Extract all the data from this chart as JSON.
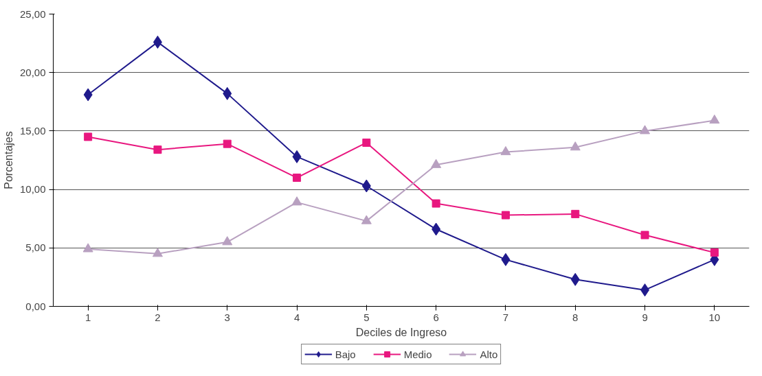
{
  "chart_data": {
    "type": "line",
    "xlabel": "Deciles de Ingreso",
    "ylabel": "Porcentajes",
    "categories": [
      "1",
      "2",
      "3",
      "4",
      "5",
      "6",
      "7",
      "8",
      "9",
      "10"
    ],
    "ylim": [
      0,
      25
    ],
    "yticks": [
      {
        "value": 0,
        "label": "0,00"
      },
      {
        "value": 5,
        "label": "5,00"
      },
      {
        "value": 10,
        "label": "10,00"
      },
      {
        "value": 15,
        "label": "15,00"
      },
      {
        "value": 20,
        "label": "20,00"
      },
      {
        "value": 25,
        "label": "25,00"
      }
    ],
    "grid": "y",
    "legend": "bottom",
    "series": [
      {
        "name": "Bajo",
        "color": "#1f1a8c",
        "marker": "diamond",
        "values": [
          18.1,
          22.6,
          18.2,
          12.8,
          10.3,
          6.6,
          4.0,
          2.3,
          1.4,
          4.0
        ]
      },
      {
        "name": "Medio",
        "color": "#e8177f",
        "marker": "square",
        "values": [
          14.5,
          13.4,
          13.9,
          11.0,
          14.0,
          8.8,
          7.8,
          7.9,
          6.1,
          4.6
        ]
      },
      {
        "name": "Alto",
        "color": "#b8a0c0",
        "marker": "triangle",
        "values": [
          4.9,
          4.5,
          5.5,
          8.9,
          7.3,
          12.1,
          13.2,
          13.6,
          15.0,
          15.9
        ]
      }
    ]
  }
}
